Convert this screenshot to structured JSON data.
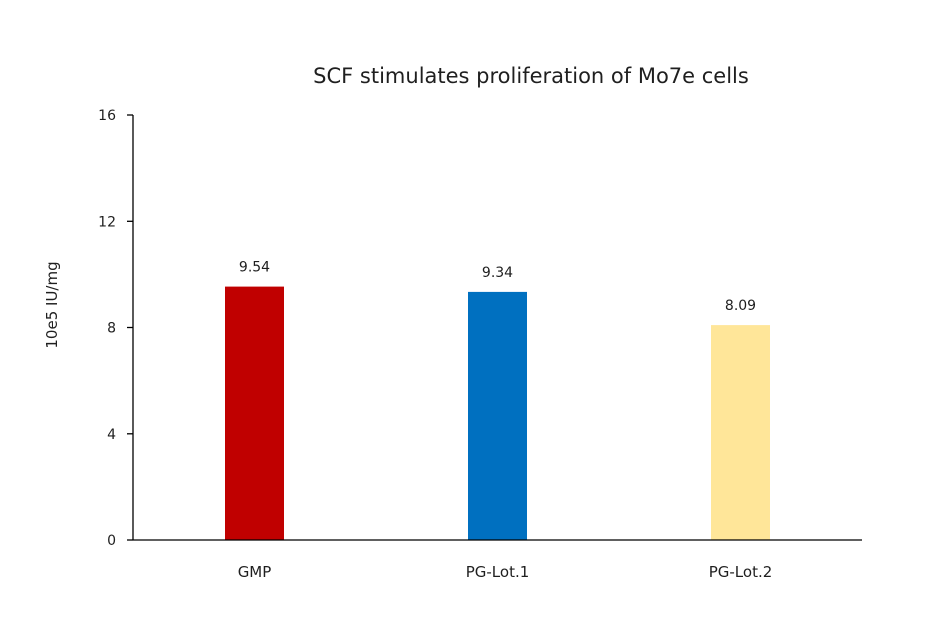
{
  "chart_data": {
    "type": "bar",
    "title": "SCF stimulates proliferation of Mo7e cells",
    "xlabel": "",
    "ylabel": "10e5 IU/mg",
    "categories": [
      "GMP",
      "PG-Lot.1",
      "PG-Lot.2"
    ],
    "values": [
      9.54,
      9.34,
      8.09
    ],
    "value_labels": [
      "9.54",
      "9.34",
      "8.09"
    ],
    "colors": [
      "#c00000",
      "#0070c0",
      "#ffe699"
    ],
    "ylim": [
      0,
      16
    ],
    "yticks": [
      0,
      4,
      8,
      12,
      16
    ],
    "grid": false,
    "legend": "none"
  }
}
